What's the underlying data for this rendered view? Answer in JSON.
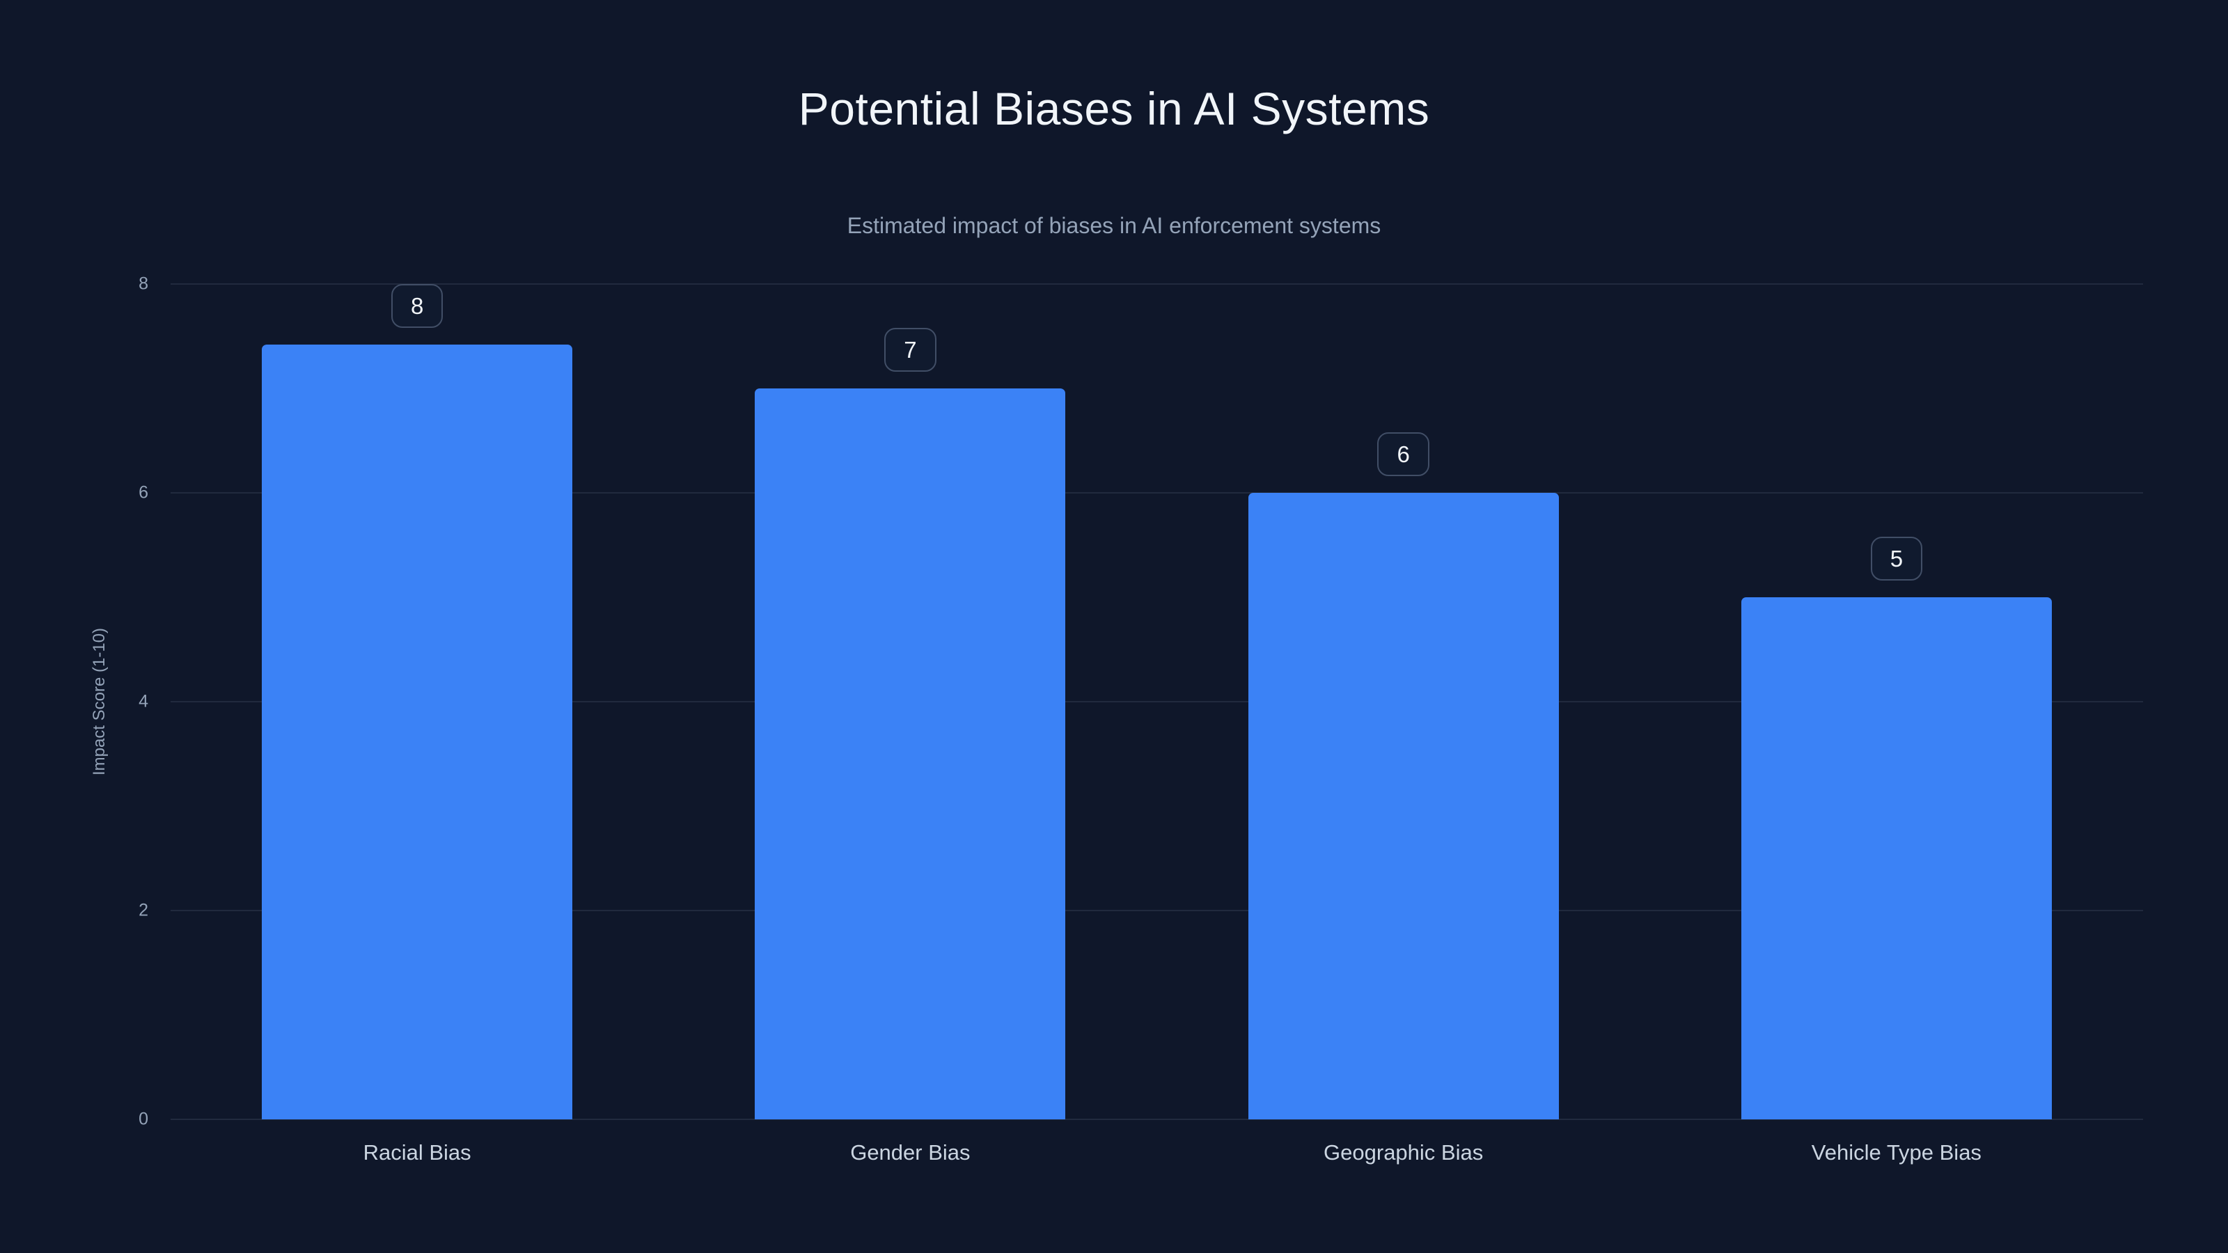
{
  "chart_data": {
    "type": "bar",
    "title": "Potential Biases in AI Systems",
    "subtitle": "Estimated impact of biases in AI enforcement systems",
    "categories": [
      "Racial Bias",
      "Gender Bias",
      "Geographic Bias",
      "Vehicle Type Bias"
    ],
    "values": [
      8,
      7,
      6,
      5
    ],
    "value_labels": [
      "8",
      "7",
      "6",
      "5"
    ],
    "xlabel": "",
    "ylabel": "Impact Score (1-10)",
    "ylim": [
      0,
      8
    ],
    "yticks": [
      0,
      2,
      4,
      6,
      8
    ],
    "grid": true,
    "legend": false,
    "colors": {
      "background": "#0f172a",
      "bar": "#3b82f6",
      "gridline": "rgba(148,163,184,0.14)",
      "title_text": "#f1f5f9",
      "subtitle_text": "#94a3b8",
      "axis_text": "#94a3b8",
      "category_text": "#cbd5e1",
      "badge_border": "#414e66"
    }
  }
}
